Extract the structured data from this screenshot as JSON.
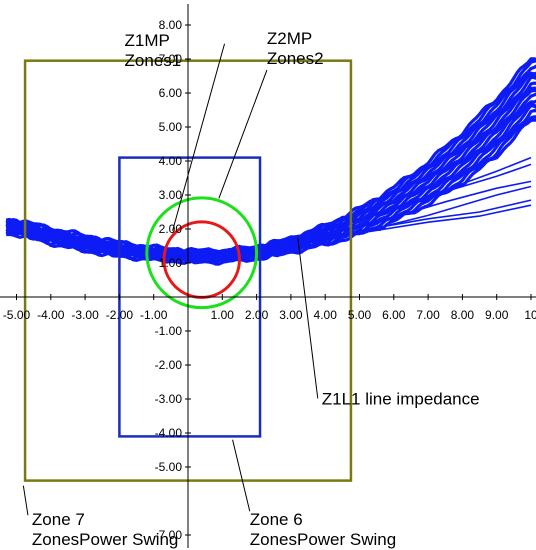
{
  "chart_data": {
    "type": "scatter",
    "xlim": [
      -5,
      10
    ],
    "ylim": [
      -7,
      8
    ],
    "x_ticks": [
      -5,
      -4,
      -3,
      -2,
      -1,
      1,
      2,
      3,
      4,
      5,
      6,
      7,
      8,
      9,
      10
    ],
    "x_tick_labels": [
      "-5.00",
      "-4.00",
      "-3.00",
      "-2.00",
      "-1.00",
      "1.00",
      "2.00",
      "3.00",
      "4.00",
      "5.00",
      "6.00",
      "7.00",
      "8.00",
      "9.00",
      "10"
    ],
    "y_ticks": [
      8,
      7,
      6,
      5,
      4,
      3,
      2,
      1,
      -1,
      -2,
      -3,
      -4,
      -5,
      -7
    ],
    "y_tick_labels": [
      "8.00",
      "7.00",
      "6.00",
      "5.00",
      "4.00",
      "3.00",
      "2.00",
      "1.00",
      "-1.00",
      "-2.00",
      "-3.00",
      "-4.00",
      "-5.00",
      "-7.00"
    ],
    "grid": false,
    "zones": [
      {
        "label_lines": [
          "Z1MP",
          "Zones1"
        ],
        "shape": "circle",
        "cx": 0.4,
        "cy": 1.1,
        "r": 1.1,
        "color": "#e81818",
        "label_anchor": {
          "x": -1.85,
          "y": 7.8
        },
        "pointer_to": {
          "x": -0.45,
          "y": 1.95
        }
      },
      {
        "label_lines": [
          "Z2MP",
          "Zones2"
        ],
        "shape": "circle",
        "cx": 0.4,
        "cy": 1.3,
        "r": 1.6,
        "color": "#1ae21a",
        "label_anchor": {
          "x": 2.3,
          "y": 7.85
        },
        "pointer_to": {
          "x": 0.9,
          "y": 2.9
        }
      },
      {
        "label_lines": [
          "Zone 6",
          "ZonesPower Swing"
        ],
        "shape": "rect",
        "x0": -2.0,
        "x1": 2.1,
        "y0": -4.1,
        "y1": 4.1,
        "color": "#1a2dc0",
        "label_anchor": {
          "x": 1.8,
          "y": -6.3
        },
        "pointer_to": {
          "x": 1.3,
          "y": -4.2
        }
      },
      {
        "label_lines": [
          "Zone 7",
          "ZonesPower Swing"
        ],
        "shape": "rect",
        "x0": -4.75,
        "x1": 4.75,
        "y0": -5.4,
        "y1": 6.95,
        "color": "#7a7a10",
        "label_anchor": {
          "x": -4.55,
          "y": -6.3
        },
        "pointer_to": {
          "x": -4.8,
          "y": -5.55
        }
      }
    ],
    "impedance_trajectory": {
      "color": "#0d1bf5",
      "center_x": [
        -5.0,
        -4.0,
        -3.0,
        -2.0,
        -1.0,
        0.0,
        1.0,
        2.0,
        3.0,
        4.0,
        5.0,
        6.0,
        7.0,
        8.0,
        9.0,
        10.0
      ],
      "center_y": [
        2.05,
        1.8,
        1.58,
        1.4,
        1.28,
        1.2,
        1.2,
        1.3,
        1.52,
        1.82,
        2.22,
        2.72,
        3.35,
        4.1,
        5.0,
        6.1
      ],
      "band_halfwidth": [
        0.2,
        0.22,
        0.22,
        0.2,
        0.18,
        0.16,
        0.16,
        0.17,
        0.2,
        0.28,
        0.38,
        0.5,
        0.62,
        0.75,
        0.85,
        0.9
      ],
      "branch_lines": [
        {
          "x": [
            2.5,
            5.0,
            7.0,
            9.0,
            10.0
          ],
          "y": [
            1.45,
            1.9,
            2.4,
            3.0,
            3.25
          ]
        },
        {
          "x": [
            3.0,
            5.5,
            7.5,
            9.0,
            10.0
          ],
          "y": [
            1.6,
            2.2,
            2.8,
            3.2,
            3.4
          ]
        },
        {
          "x": [
            2.5,
            5.0,
            7.0,
            8.5,
            10.0
          ],
          "y": [
            1.5,
            1.95,
            2.3,
            2.5,
            2.85
          ]
        },
        {
          "x": [
            2.5,
            5.0,
            7.0,
            8.5,
            10.0
          ],
          "y": [
            1.5,
            1.88,
            2.2,
            2.38,
            2.7
          ]
        },
        {
          "x": [
            3.0,
            5.5,
            7.5,
            9.0,
            10.0
          ],
          "y": [
            1.6,
            2.45,
            3.15,
            3.7,
            4.1
          ]
        },
        {
          "x": [
            2.0,
            5.0,
            7.0,
            9.0,
            10.0
          ],
          "y": [
            1.45,
            2.3,
            2.95,
            3.55,
            3.9
          ]
        }
      ],
      "label": "Z1L1 line impedance",
      "label_anchor": {
        "x": 3.9,
        "y": -2.75
      },
      "pointer_to": {
        "x": 3.2,
        "y": 1.75
      }
    }
  }
}
